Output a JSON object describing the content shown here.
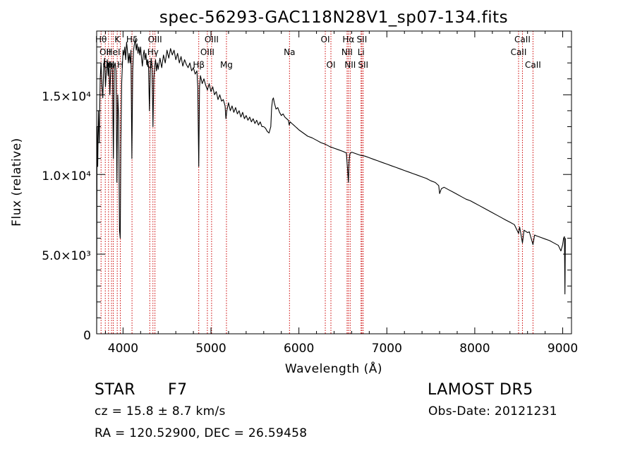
{
  "chart_data": {
    "type": "line",
    "title": "spec-56293-GAC118N28V1_sp07-134.fits",
    "xlabel": "Wavelength (Å)",
    "ylabel": "Flux (relative)",
    "xlim": [
      3700,
      9100
    ],
    "ylim": [
      0,
      19000
    ],
    "xticks": [
      {
        "value": 4000,
        "label": "4000"
      },
      {
        "value": 5000,
        "label": "5000"
      },
      {
        "value": 6000,
        "label": "6000"
      },
      {
        "value": 7000,
        "label": "7000"
      },
      {
        "value": 8000,
        "label": "8000"
      },
      {
        "value": 9000,
        "label": "9000"
      }
    ],
    "yticks": [
      {
        "value": 0,
        "label": "0"
      },
      {
        "value": 5000,
        "label": "5.0×10³"
      },
      {
        "value": 10000,
        "label": "1.0×10⁴"
      },
      {
        "value": 15000,
        "label": "1.5×10⁴"
      }
    ],
    "line_color": "#000000",
    "marker_line_color": "#cc0000",
    "series": [
      {
        "points": [
          [
            3700,
            0
          ],
          [
            3705,
            13000
          ],
          [
            3712,
            10500
          ],
          [
            3720,
            14000
          ],
          [
            3730,
            12000
          ],
          [
            3740,
            16000
          ],
          [
            3750,
            17000
          ],
          [
            3760,
            15500
          ],
          [
            3770,
            14800
          ],
          [
            3780,
            16800
          ],
          [
            3790,
            17300
          ],
          [
            3800,
            15500
          ],
          [
            3810,
            16500
          ],
          [
            3820,
            17200
          ],
          [
            3830,
            16200
          ],
          [
            3840,
            17000
          ],
          [
            3850,
            15000
          ],
          [
            3860,
            16600
          ],
          [
            3870,
            17000
          ],
          [
            3880,
            16500
          ],
          [
            3890,
            11000
          ],
          [
            3900,
            16800
          ],
          [
            3910,
            17000
          ],
          [
            3920,
            16500
          ],
          [
            3930,
            9500
          ],
          [
            3940,
            15000
          ],
          [
            3950,
            13500
          ],
          [
            3960,
            6500
          ],
          [
            3968,
            6000
          ],
          [
            3975,
            12000
          ],
          [
            3985,
            15800
          ],
          [
            3995,
            17200
          ],
          [
            4000,
            17800
          ],
          [
            4010,
            17500
          ],
          [
            4020,
            18000
          ],
          [
            4030,
            17200
          ],
          [
            4040,
            18300
          ],
          [
            4050,
            17800
          ],
          [
            4060,
            17000
          ],
          [
            4070,
            17600
          ],
          [
            4080,
            17000
          ],
          [
            4090,
            17800
          ],
          [
            4100,
            11000
          ],
          [
            4110,
            16500
          ],
          [
            4120,
            17800
          ],
          [
            4130,
            18200
          ],
          [
            4140,
            18500
          ],
          [
            4150,
            17800
          ],
          [
            4160,
            18200
          ],
          [
            4170,
            17600
          ],
          [
            4180,
            18000
          ],
          [
            4190,
            17500
          ],
          [
            4200,
            18000
          ],
          [
            4210,
            17300
          ],
          [
            4220,
            16800
          ],
          [
            4230,
            17500
          ],
          [
            4240,
            17800
          ],
          [
            4250,
            17200
          ],
          [
            4260,
            17600
          ],
          [
            4270,
            16900
          ],
          [
            4280,
            17200
          ],
          [
            4290,
            16800
          ],
          [
            4300,
            14000
          ],
          [
            4310,
            16500
          ],
          [
            4320,
            17300
          ],
          [
            4330,
            16700
          ],
          [
            4340,
            13000
          ],
          [
            4350,
            16000
          ],
          [
            4360,
            16800
          ],
          [
            4370,
            17200
          ],
          [
            4380,
            16500
          ],
          [
            4390,
            17000
          ],
          [
            4400,
            16600
          ],
          [
            4420,
            17300
          ],
          [
            4440,
            16700
          ],
          [
            4460,
            17500
          ],
          [
            4480,
            17000
          ],
          [
            4500,
            17800
          ],
          [
            4520,
            17300
          ],
          [
            4540,
            17900
          ],
          [
            4560,
            17500
          ],
          [
            4580,
            17800
          ],
          [
            4600,
            17200
          ],
          [
            4620,
            17600
          ],
          [
            4640,
            17000
          ],
          [
            4660,
            17400
          ],
          [
            4680,
            16800
          ],
          [
            4700,
            17200
          ],
          [
            4720,
            16900
          ],
          [
            4740,
            16700
          ],
          [
            4760,
            17000
          ],
          [
            4780,
            16500
          ],
          [
            4800,
            16700
          ],
          [
            4820,
            16300
          ],
          [
            4840,
            16500
          ],
          [
            4850,
            15500
          ],
          [
            4861,
            10500
          ],
          [
            4870,
            15500
          ],
          [
            4880,
            16200
          ],
          [
            4900,
            15700
          ],
          [
            4920,
            16000
          ],
          [
            4940,
            15600
          ],
          [
            4960,
            15300
          ],
          [
            4980,
            15700
          ],
          [
            5000,
            15200
          ],
          [
            5020,
            15500
          ],
          [
            5040,
            15000
          ],
          [
            5060,
            15200
          ],
          [
            5080,
            14700
          ],
          [
            5100,
            15000
          ],
          [
            5120,
            14600
          ],
          [
            5140,
            14700
          ],
          [
            5160,
            14300
          ],
          [
            5170,
            13500
          ],
          [
            5180,
            14000
          ],
          [
            5200,
            14500
          ],
          [
            5220,
            14000
          ],
          [
            5240,
            14300
          ],
          [
            5260,
            13900
          ],
          [
            5280,
            14200
          ],
          [
            5300,
            13800
          ],
          [
            5320,
            14000
          ],
          [
            5340,
            13600
          ],
          [
            5360,
            13900
          ],
          [
            5380,
            13500
          ],
          [
            5400,
            13700
          ],
          [
            5420,
            13400
          ],
          [
            5440,
            13600
          ],
          [
            5460,
            13300
          ],
          [
            5480,
            13500
          ],
          [
            5500,
            13200
          ],
          [
            5520,
            13400
          ],
          [
            5540,
            13100
          ],
          [
            5560,
            13300
          ],
          [
            5580,
            13000
          ],
          [
            5600,
            13000
          ],
          [
            5620,
            12900
          ],
          [
            5640,
            12700
          ],
          [
            5660,
            12600
          ],
          [
            5680,
            13000
          ],
          [
            5690,
            14200
          ],
          [
            5700,
            14700
          ],
          [
            5710,
            14800
          ],
          [
            5720,
            14500
          ],
          [
            5740,
            14100
          ],
          [
            5760,
            14200
          ],
          [
            5780,
            13900
          ],
          [
            5800,
            13700
          ],
          [
            5820,
            13800
          ],
          [
            5840,
            13600
          ],
          [
            5860,
            13500
          ],
          [
            5880,
            13400
          ],
          [
            5890,
            13100
          ],
          [
            5900,
            13300
          ],
          [
            5920,
            13200
          ],
          [
            5940,
            13100
          ],
          [
            5960,
            13000
          ],
          [
            5980,
            12900
          ],
          [
            6000,
            12800
          ],
          [
            6050,
            12600
          ],
          [
            6100,
            12400
          ],
          [
            6150,
            12300
          ],
          [
            6200,
            12150
          ],
          [
            6250,
            12000
          ],
          [
            6300,
            11900
          ],
          [
            6350,
            11750
          ],
          [
            6400,
            11650
          ],
          [
            6450,
            11550
          ],
          [
            6500,
            11450
          ],
          [
            6540,
            11350
          ],
          [
            6555,
            10200
          ],
          [
            6563,
            9500
          ],
          [
            6570,
            10800
          ],
          [
            6580,
            11300
          ],
          [
            6600,
            11400
          ],
          [
            6650,
            11300
          ],
          [
            6700,
            11200
          ],
          [
            6750,
            11150
          ],
          [
            6800,
            11050
          ],
          [
            6850,
            10950
          ],
          [
            6900,
            10850
          ],
          [
            6950,
            10750
          ],
          [
            7000,
            10650
          ],
          [
            7050,
            10550
          ],
          [
            7100,
            10450
          ],
          [
            7150,
            10350
          ],
          [
            7200,
            10250
          ],
          [
            7250,
            10150
          ],
          [
            7300,
            10050
          ],
          [
            7350,
            9950
          ],
          [
            7400,
            9850
          ],
          [
            7450,
            9750
          ],
          [
            7500,
            9600
          ],
          [
            7550,
            9500
          ],
          [
            7590,
            9300
          ],
          [
            7600,
            8800
          ],
          [
            7620,
            9100
          ],
          [
            7650,
            9200
          ],
          [
            7700,
            9050
          ],
          [
            7750,
            8900
          ],
          [
            7800,
            8750
          ],
          [
            7850,
            8600
          ],
          [
            7900,
            8450
          ],
          [
            7950,
            8350
          ],
          [
            8000,
            8200
          ],
          [
            8050,
            8050
          ],
          [
            8100,
            7900
          ],
          [
            8150,
            7750
          ],
          [
            8200,
            7600
          ],
          [
            8250,
            7450
          ],
          [
            8300,
            7300
          ],
          [
            8350,
            7150
          ],
          [
            8400,
            7000
          ],
          [
            8450,
            6850
          ],
          [
            8498,
            6300
          ],
          [
            8510,
            6700
          ],
          [
            8542,
            5700
          ],
          [
            8560,
            6500
          ],
          [
            8600,
            6350
          ],
          [
            8620,
            6400
          ],
          [
            8662,
            5600
          ],
          [
            8680,
            6200
          ],
          [
            8700,
            6150
          ],
          [
            8750,
            6050
          ],
          [
            8800,
            5950
          ],
          [
            8850,
            5850
          ],
          [
            8900,
            5700
          ],
          [
            8950,
            5550
          ],
          [
            8980,
            5200
          ],
          [
            9000,
            5600
          ],
          [
            9010,
            6000
          ],
          [
            9020,
            6100
          ],
          [
            9025,
            2500
          ],
          [
            9030,
            6000
          ]
        ]
      }
    ],
    "lines": [
      {
        "x": 3750,
        "label": "Hθ",
        "row": 0
      },
      {
        "x": 3798,
        "label": "OII",
        "row": 1
      },
      {
        "x": 3835,
        "label": "OII",
        "row": 2
      },
      {
        "x": 3869,
        "label": "H",
        "row": 2
      },
      {
        "x": 3889,
        "label": "HeI",
        "row": 1
      },
      {
        "x": 3934,
        "label": "K",
        "row": 0
      },
      {
        "x": 3969,
        "label": "H",
        "row": 2
      },
      {
        "x": 4102,
        "label": "Hδ",
        "row": 0
      },
      {
        "x": 4304,
        "label": "G",
        "row": 2
      },
      {
        "x": 4340,
        "label": "Hγ",
        "row": 1
      },
      {
        "x": 4363,
        "label": "OIII",
        "row": 0
      },
      {
        "x": 4861,
        "label": "Hβ",
        "row": 2
      },
      {
        "x": 4959,
        "label": "OIII",
        "row": 1
      },
      {
        "x": 5007,
        "label": "OIII",
        "row": 0
      },
      {
        "x": 5176,
        "label": "Mg",
        "row": 2
      },
      {
        "x": 5893,
        "label": "Na",
        "row": 1
      },
      {
        "x": 6300,
        "label": "OI",
        "row": 0
      },
      {
        "x": 6364,
        "label": "OI",
        "row": 2
      },
      {
        "x": 6548,
        "label": "NII",
        "row": 1
      },
      {
        "x": 6563,
        "label": "Hα",
        "row": 0
      },
      {
        "x": 6583,
        "label": "NII",
        "row": 2
      },
      {
        "x": 6707,
        "label": "Li",
        "row": 1
      },
      {
        "x": 6716,
        "label": "SII",
        "row": 0
      },
      {
        "x": 6731,
        "label": "SII",
        "row": 2
      },
      {
        "x": 8498,
        "label": "CaII",
        "row": 1
      },
      {
        "x": 8542,
        "label": "CaII",
        "row": 0
      },
      {
        "x": 8662,
        "label": "CaII",
        "row": 2
      }
    ]
  },
  "info": {
    "class_label": "STAR",
    "subclass": "F7",
    "survey": "LAMOST DR5",
    "cz": "cz = 15.8 ± 8.7 km/s",
    "obs_date": "Obs-Date: 20121231",
    "coords": "RA = 120.52900, DEC =  26.59458"
  }
}
